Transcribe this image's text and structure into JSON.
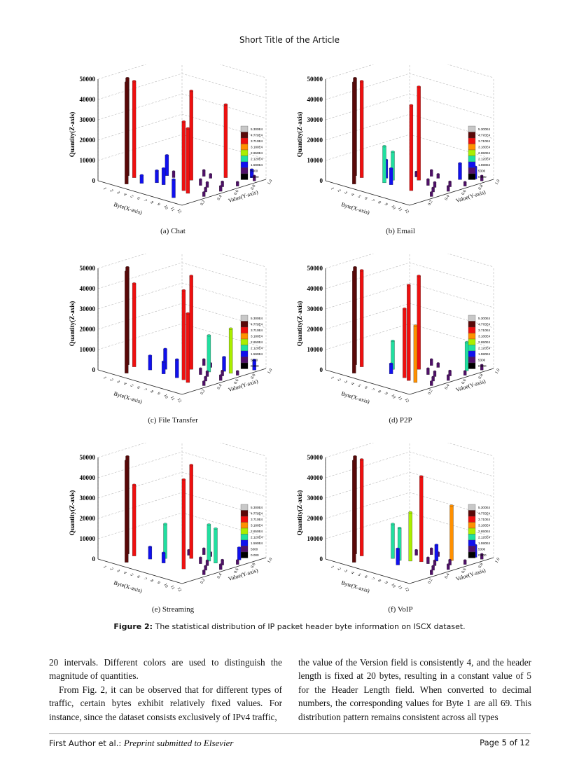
{
  "header": {
    "running_title": "Short Title of the Article"
  },
  "figure": {
    "label": "Figure 2:",
    "caption": "The statistical distribution of IP packet header byte information on ISCX dataset."
  },
  "chart_data": [
    {
      "type": "bar3d",
      "subcaption": "(a) Chat",
      "zlabel": "Quantity(Z-axis)",
      "xlabel": "Byte(X-axis)",
      "ylabel": "Value(Y-axis)",
      "zlim": [
        0,
        50000
      ],
      "zticks": [
        "0",
        "10000",
        "20000",
        "30000",
        "40000",
        "50000"
      ],
      "xticks": [
        "1",
        "2",
        "3",
        "4",
        "5",
        "6",
        "7",
        "8",
        "9",
        "10",
        "11",
        "12"
      ],
      "yticks": [
        "0.2",
        "0.4",
        "0.6",
        "0.8",
        "1.0"
      ],
      "bars": [
        [
          1,
          0.27,
          48000
        ],
        [
          2,
          0.27,
          47500
        ],
        [
          3,
          0.1,
          50000
        ],
        [
          4,
          0.5,
          10000
        ],
        [
          4,
          0.2,
          4000
        ],
        [
          5,
          0.3,
          6000
        ],
        [
          6,
          0.3,
          8000
        ],
        [
          7,
          0.55,
          44000
        ],
        [
          9,
          0.3,
          34000
        ],
        [
          10,
          0.27,
          32000
        ],
        [
          10,
          0.1,
          9000
        ],
        [
          9,
          0.8,
          36000
        ],
        [
          11,
          0.95,
          4000
        ]
      ],
      "small": [
        [
          5,
          0.5,
          3000
        ],
        [
          6,
          0.6,
          2500
        ],
        [
          7,
          0.7,
          3000
        ],
        [
          8,
          0.7,
          2000
        ],
        [
          9,
          0.5,
          3000
        ],
        [
          10,
          0.5,
          2500
        ],
        [
          11,
          0.4,
          2000
        ],
        [
          11,
          0.6,
          2500
        ],
        [
          12,
          0.3,
          2000
        ],
        [
          12,
          0.5,
          2500
        ],
        [
          12,
          0.7,
          2000
        ],
        [
          12,
          0.9,
          2500
        ]
      ]
    },
    {
      "type": "bar3d",
      "subcaption": "(b) Email",
      "zlabel": "Quantity(Z-axis)",
      "xlabel": "Byte(X-axis)",
      "ylabel": "Value(Y-axis)",
      "zlim": [
        0,
        50000
      ],
      "zticks": [
        "0",
        "10000",
        "20000",
        "30000",
        "40000",
        "50000"
      ],
      "xticks": [
        "1",
        "2",
        "3",
        "4",
        "5",
        "6",
        "7",
        "8",
        "9",
        "10",
        "11",
        "12"
      ],
      "yticks": [
        "0.2",
        "0.4",
        "0.6",
        "0.8",
        "1.0"
      ],
      "bars": [
        [
          1,
          0.27,
          48000
        ],
        [
          2,
          0.27,
          47500
        ],
        [
          3,
          0.1,
          50000
        ],
        [
          4,
          0.4,
          9000
        ],
        [
          5,
          0.3,
          18000
        ],
        [
          5,
          0.4,
          14000
        ],
        [
          6,
          0.3,
          8000
        ],
        [
          7,
          0.55,
          46000
        ],
        [
          9,
          0.3,
          42000
        ],
        [
          10,
          0.8,
          8000
        ],
        [
          11,
          0.9,
          6000
        ]
      ],
      "small": [
        [
          6,
          0.6,
          2500
        ],
        [
          7,
          0.7,
          3000
        ],
        [
          8,
          0.7,
          2000
        ],
        [
          9,
          0.5,
          3000
        ],
        [
          10,
          0.5,
          2500
        ],
        [
          11,
          0.4,
          2000
        ],
        [
          11,
          0.6,
          2500
        ],
        [
          12,
          0.3,
          2000
        ],
        [
          12,
          0.5,
          2500
        ],
        [
          12,
          0.7,
          2000
        ],
        [
          12,
          0.9,
          2500
        ]
      ]
    },
    {
      "type": "bar3d",
      "subcaption": "(c) File Transfer",
      "zlabel": "Quantity(Z-axis)",
      "xlabel": "Byte(X-axis)",
      "ylabel": "Value(Y-axis)",
      "zlim": [
        0,
        50000
      ],
      "zticks": [
        "0",
        "10000",
        "20000",
        "30000",
        "40000",
        "50000"
      ],
      "xticks": [
        "1",
        "2",
        "3",
        "4",
        "5",
        "6",
        "7",
        "8",
        "9",
        "10",
        "11",
        "12"
      ],
      "yticks": [
        "0.2",
        "0.4",
        "0.6",
        "0.8",
        "1.0"
      ],
      "bars": [
        [
          1,
          0.27,
          48000
        ],
        [
          2,
          0.27,
          41000
        ],
        [
          3,
          0.1,
          50000
        ],
        [
          4,
          0.3,
          7000
        ],
        [
          5,
          0.4,
          10000
        ],
        [
          6,
          0.3,
          6000
        ],
        [
          7,
          0.55,
          46000
        ],
        [
          8,
          0.3,
          9000
        ],
        [
          9,
          0.3,
          44000
        ],
        [
          10,
          0.27,
          34000
        ],
        [
          9,
          0.6,
          18000
        ],
        [
          10,
          0.7,
          7000
        ],
        [
          11,
          0.7,
          22000
        ],
        [
          12,
          0.9,
          5000
        ]
      ],
      "small": [
        [
          6,
          0.6,
          2500
        ],
        [
          7,
          0.7,
          3000
        ],
        [
          8,
          0.7,
          2000
        ],
        [
          9,
          0.5,
          3000
        ],
        [
          10,
          0.5,
          2500
        ],
        [
          11,
          0.4,
          2000
        ],
        [
          11,
          0.6,
          2500
        ],
        [
          12,
          0.3,
          2000
        ],
        [
          12,
          0.5,
          2500
        ],
        [
          12,
          0.7,
          2000
        ]
      ]
    },
    {
      "type": "bar3d",
      "subcaption": "(d) P2P",
      "zlabel": "Quantity(Z-axis)",
      "xlabel": "Byte(X-axis)",
      "ylabel": "Value(Y-axis)",
      "zlim": [
        0,
        50000
      ],
      "zticks": [
        "0",
        "10000",
        "20000",
        "30000",
        "40000",
        "50000"
      ],
      "xticks": [
        "1",
        "2",
        "3",
        "4",
        "5",
        "6",
        "7",
        "8",
        "9",
        "10",
        "11",
        "12"
      ],
      "yticks": [
        "0.2",
        "0.4",
        "0.6",
        "0.8",
        "1.0"
      ],
      "bars": [
        [
          1,
          0.27,
          48000
        ],
        [
          2,
          0.27,
          47500
        ],
        [
          3,
          0.1,
          50000
        ],
        [
          5,
          0.4,
          14000
        ],
        [
          7,
          0.55,
          46000
        ],
        [
          8,
          0.3,
          34000
        ],
        [
          9,
          0.27,
          47000
        ],
        [
          10,
          0.27,
          28000
        ],
        [
          6,
          0.3,
          5000
        ],
        [
          11,
          0.8,
          14000
        ]
      ],
      "small": [
        [
          6,
          0.6,
          2500
        ],
        [
          7,
          0.7,
          3000
        ],
        [
          8,
          0.7,
          2000
        ],
        [
          9,
          0.5,
          3000
        ],
        [
          10,
          0.5,
          2500
        ],
        [
          11,
          0.4,
          2000
        ],
        [
          11,
          0.6,
          2500
        ],
        [
          12,
          0.3,
          2000
        ],
        [
          12,
          0.5,
          2500
        ],
        [
          12,
          0.7,
          2000
        ],
        [
          12,
          0.9,
          2500
        ]
      ]
    },
    {
      "type": "bar3d",
      "subcaption": "(e) Streaming",
      "zlabel": "Quantity(Z-axis)",
      "xlabel": "Byte(X-axis)",
      "ylabel": "Value(Y-axis)",
      "zlim": [
        0,
        50000
      ],
      "zticks": [
        "0",
        "10000",
        "20000",
        "30000",
        "40000",
        "50000"
      ],
      "xticks": [
        "1",
        "2",
        "3",
        "4",
        "5",
        "6",
        "7",
        "8",
        "9",
        "10",
        "11",
        "12"
      ],
      "yticks": [
        "0.2",
        "0.4",
        "0.6",
        "0.8",
        "1.0"
      ],
      "bars": [
        [
          1,
          0.27,
          48000
        ],
        [
          2,
          0.27,
          35000
        ],
        [
          3,
          0.1,
          50000
        ],
        [
          4,
          0.3,
          6000
        ],
        [
          5,
          0.4,
          17000
        ],
        [
          6,
          0.3,
          5000
        ],
        [
          7,
          0.55,
          46000
        ],
        [
          9,
          0.3,
          44000
        ],
        [
          9,
          0.6,
          18000
        ],
        [
          10,
          0.6,
          17000
        ],
        [
          11,
          0.8,
          6000
        ]
      ],
      "small": [
        [
          6,
          0.6,
          2500
        ],
        [
          7,
          0.7,
          3000
        ],
        [
          8,
          0.7,
          2000
        ],
        [
          9,
          0.5,
          3000
        ],
        [
          10,
          0.5,
          2500
        ],
        [
          11,
          0.4,
          2000
        ],
        [
          11,
          0.6,
          2500
        ],
        [
          12,
          0.3,
          2000
        ],
        [
          12,
          0.5,
          2500
        ],
        [
          12,
          0.7,
          2000
        ]
      ]
    },
    {
      "type": "bar3d",
      "subcaption": "(f) VoIP",
      "zlabel": "Quantity(Z-axis)",
      "xlabel": "Byte(X-axis)",
      "ylabel": "Value(Y-axis)",
      "zlim": [
        0,
        50000
      ],
      "zticks": [
        "0",
        "10000",
        "20000",
        "30000",
        "40000",
        "50000"
      ],
      "xticks": [
        "1",
        "2",
        "3",
        "4",
        "5",
        "6",
        "7",
        "8",
        "9",
        "10",
        "11",
        "12"
      ],
      "yticks": [
        "0.2",
        "0.4",
        "0.6",
        "0.8",
        "1.0"
      ],
      "bars": [
        [
          1,
          0.27,
          48000
        ],
        [
          2,
          0.27,
          47500
        ],
        [
          3,
          0.1,
          50000
        ],
        [
          5,
          0.4,
          17000
        ],
        [
          6,
          0.4,
          16000
        ],
        [
          7,
          0.45,
          24000
        ],
        [
          8,
          0.5,
          42000
        ],
        [
          7,
          0.3,
          8000
        ],
        [
          9,
          0.6,
          8000
        ],
        [
          10,
          0.7,
          27000
        ],
        [
          11,
          0.9,
          6000
        ]
      ],
      "small": [
        [
          6,
          0.6,
          2500
        ],
        [
          7,
          0.7,
          3000
        ],
        [
          8,
          0.7,
          2000
        ],
        [
          9,
          0.5,
          3000
        ],
        [
          10,
          0.5,
          2500
        ],
        [
          11,
          0.4,
          2000
        ],
        [
          11,
          0.6,
          2500
        ],
        [
          12,
          0.3,
          2000
        ],
        [
          12,
          0.5,
          2500
        ],
        [
          12,
          0.7,
          2000
        ],
        [
          12,
          0.9,
          2500
        ]
      ]
    }
  ],
  "colorbar": {
    "labels": [
      "5.300E4",
      "4.770E4",
      "3.710E4",
      "3.180E4",
      "2.650E4",
      "2.120E4",
      "1.590E4",
      "5300",
      "0.000"
    ],
    "colors": [
      "#c8c8c8",
      "#5a0808",
      "#ee1010",
      "#ff9000",
      "#aaee00",
      "#20e0a0",
      "#1010ee",
      "#50106a",
      "#000000"
    ]
  },
  "body": {
    "left": [
      "20 intervals. Different colors are used to distinguish the magnitude of quantities.",
      "From Fig. 2, it can be observed that for different types of traffic, certain bytes exhibit relatively fixed values. For instance, since the dataset consists exclusively of IPv4 traffic,"
    ],
    "right": "the value of the Version field is consistently 4, and the header length is fixed at 20 bytes, resulting in a constant value of 5 for the Header Length field. When converted to decimal numbers, the corresponding values for Byte 1 are all 69. This distribution pattern remains consistent across all types"
  },
  "footer": {
    "authors": "First Author et al.:",
    "venue": "Preprint submitted to Elsevier",
    "page": "Page 5 of 12"
  }
}
